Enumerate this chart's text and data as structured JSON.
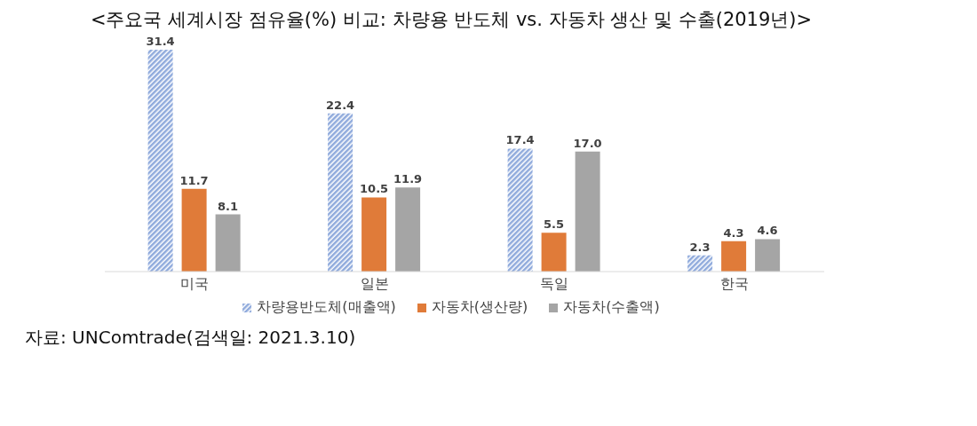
{
  "chart_data": {
    "type": "bar",
    "title": "<주요국 세계시장 점유율(%) 비교: 차량용 반도체 vs. 자동차 생산 및 수출(2019년)>",
    "categories": [
      "미국",
      "일본",
      "독일",
      "한국"
    ],
    "series": [
      {
        "name": "차량용반도체(매출액)",
        "color": "#8faadc",
        "values": [
          31.4,
          22.4,
          17.4,
          2.3
        ],
        "value_labels": [
          "31.4",
          "22.4",
          "17.4",
          "2.3"
        ]
      },
      {
        "name": "자동차(생산량)",
        "color": "#e07b39",
        "values": [
          11.7,
          10.5,
          5.5,
          4.3
        ],
        "value_labels": [
          "11.7",
          "10.5",
          "5.5",
          "4.3"
        ]
      },
      {
        "name": "자동차(수출액)",
        "color": "#a5a5a5",
        "values": [
          8.1,
          11.9,
          17.0,
          4.6
        ],
        "value_labels": [
          "8.1",
          "11.9",
          "17.0",
          "4.6"
        ]
      }
    ],
    "legend": "bottom",
    "annotations": [
      "자료: UNComtrade(검색일: 2021.3.10)"
    ]
  }
}
